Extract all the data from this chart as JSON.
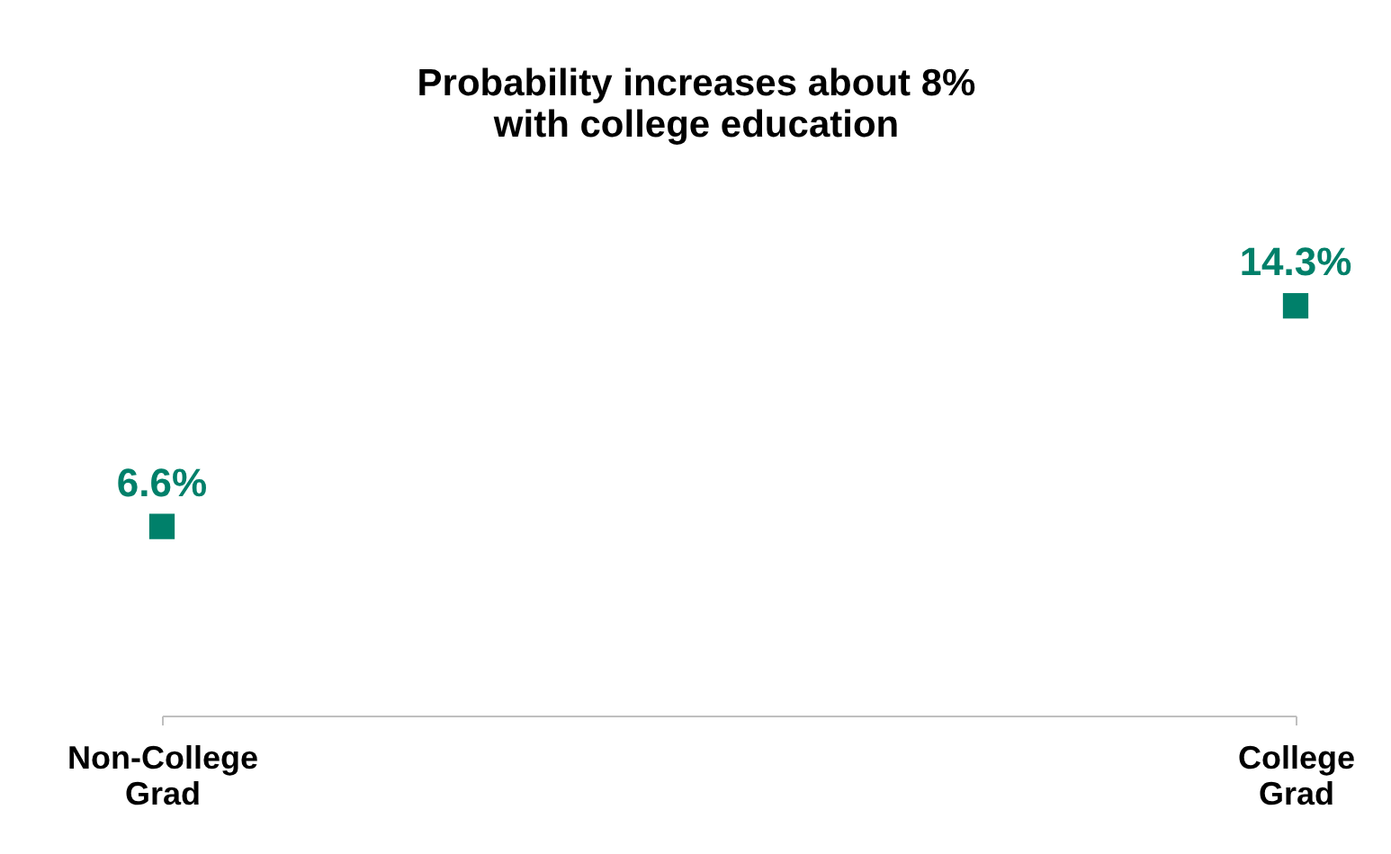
{
  "chart_data": {
    "type": "scatter",
    "title": "Probability increases about 8%\nwith college education",
    "categories": [
      "Non-College Grad",
      "College Grad"
    ],
    "series": [
      {
        "color": "#00806a",
        "values": [
          6.6,
          14.3
        ],
        "value_labels": [
          "6.6%",
          "14.3%"
        ]
      }
    ],
    "marker": "square",
    "tick_labels": "x"
  }
}
